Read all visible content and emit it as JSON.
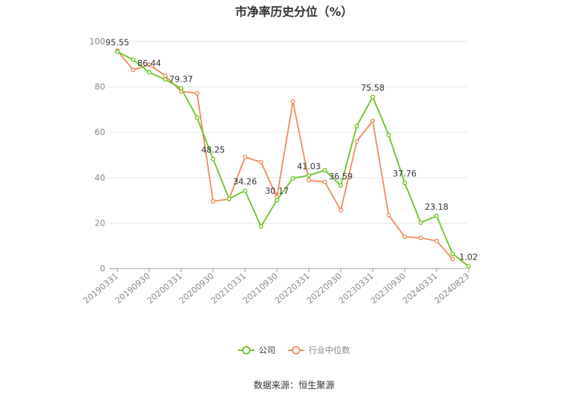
{
  "title": "市净率历史分位（%）",
  "source": "数据来源：恒生聚源",
  "colors": {
    "company": "#6cc52b",
    "industry": "#f28d5f",
    "grid": "#e6e6e6",
    "axis": "#999999"
  },
  "chart_data": {
    "type": "line",
    "title": "市净率历史分位（%）",
    "ylim": [
      0,
      100
    ],
    "yticks": [
      0,
      20,
      40,
      60,
      80,
      100
    ],
    "grid": true,
    "legend_position": "bottom",
    "x": [
      "20190331",
      "20190630",
      "20190930",
      "20191231",
      "20200331",
      "20200630",
      "20200930",
      "20201231",
      "20210331",
      "20210630",
      "20210930",
      "20211231",
      "20220331",
      "20220630",
      "20220930",
      "20221231",
      "20230331",
      "20230630",
      "20230930",
      "20231231",
      "20240331",
      "20240630",
      "20240823"
    ],
    "x_tick_labels": [
      "20190331",
      "20190930",
      "20200331",
      "20200930",
      "20210331",
      "20210930",
      "20220331",
      "20220930",
      "20230331",
      "20230930",
      "20240331",
      "20240823"
    ],
    "series": [
      {
        "name": "公司",
        "color": "#6cc52b",
        "values": [
          95.55,
          92.0,
          86.44,
          83.3,
          79.37,
          66.5,
          48.25,
          30.8,
          34.26,
          18.5,
          30.17,
          39.8,
          41.03,
          43.3,
          36.59,
          62.8,
          75.58,
          58.8,
          37.76,
          20.2,
          23.18,
          6.5,
          1.02
        ]
      },
      {
        "name": "行业中位数",
        "color": "#f28d5f",
        "values": [
          96.0,
          87.5,
          89.8,
          85.0,
          78.0,
          77.2,
          29.6,
          30.6,
          49.1,
          46.9,
          31.5,
          73.6,
          38.9,
          38.1,
          25.7,
          56.0,
          65.0,
          23.5,
          14.0,
          13.5,
          12.2,
          4.2,
          null
        ]
      }
    ],
    "annotations": [
      {
        "series": 0,
        "index": 0,
        "text": "95.55"
      },
      {
        "series": 0,
        "index": 2,
        "text": "86.44"
      },
      {
        "series": 0,
        "index": 4,
        "text": "79.37"
      },
      {
        "series": 0,
        "index": 6,
        "text": "48.25"
      },
      {
        "series": 0,
        "index": 8,
        "text": "34.26"
      },
      {
        "series": 0,
        "index": 10,
        "text": "30.17"
      },
      {
        "series": 0,
        "index": 12,
        "text": "41.03"
      },
      {
        "series": 0,
        "index": 14,
        "text": "36.59"
      },
      {
        "series": 0,
        "index": 16,
        "text": "75.58"
      },
      {
        "series": 0,
        "index": 18,
        "text": "37.76"
      },
      {
        "series": 0,
        "index": 20,
        "text": "23.18"
      },
      {
        "series": 0,
        "index": 22,
        "text": "1.02"
      }
    ]
  },
  "legend": [
    {
      "label": "公司",
      "color": "#6cc52b"
    },
    {
      "label": "行业中位数",
      "color": "#f28d5f"
    }
  ]
}
